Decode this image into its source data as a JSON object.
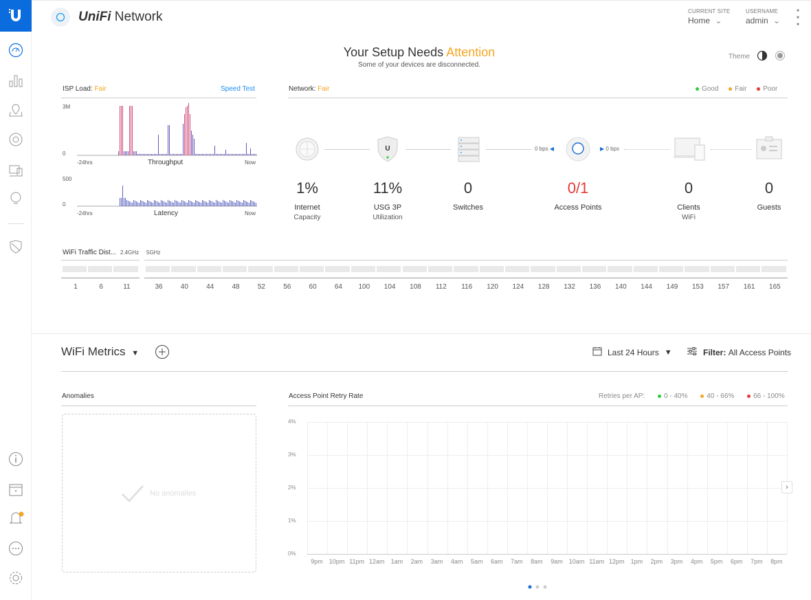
{
  "app": {
    "brand_prefix": "UniFi",
    "brand_suffix": "Network"
  },
  "header": {
    "site_label": "CURRENT SITE",
    "site_value": "Home",
    "user_label": "USERNAME",
    "user_value": "admin"
  },
  "status": {
    "title_prefix": "Your Setup Needs",
    "title_highlight": "Attention",
    "subtitle": "Some of your devices are disconnected.",
    "theme_label": "Theme"
  },
  "isp": {
    "label": "ISP Load:",
    "status": "Fair",
    "speed_test": "Speed Test",
    "throughput": {
      "ymax": "3M",
      "ymin": "0",
      "left": "-24hrs",
      "right": "Now",
      "name": "Throughput"
    },
    "latency": {
      "ymax": "500",
      "ymin": "0",
      "left": "-24hrs",
      "right": "Now",
      "name": "Latency"
    }
  },
  "network": {
    "label": "Network:",
    "status": "Fair",
    "legend": [
      {
        "label": "Good",
        "color": "#2ecc40"
      },
      {
        "label": "Fair",
        "color": "#f5a623"
      },
      {
        "label": "Poor",
        "color": "#e53935"
      }
    ],
    "rate_down": "0 bps",
    "rate_up": "0 bps",
    "stats": [
      {
        "value": "1%",
        "label": "Internet",
        "sub": "Capacity"
      },
      {
        "value": "11%",
        "label": "USG 3P",
        "sub": "Utilization"
      },
      {
        "value": "0",
        "label": "Switches",
        "sub": ""
      },
      {
        "value": "0/1",
        "label": "Access Points",
        "sub": ""
      },
      {
        "value": "0",
        "label": "Clients",
        "sub": "WiFi"
      },
      {
        "value": "0",
        "label": "Guests",
        "sub": ""
      }
    ]
  },
  "wifi_traffic": {
    "label": "WiFi Traffic Dist...",
    "band24": "2.4GHz",
    "band5": "5GHz",
    "channels24": [
      "1",
      "6",
      "11"
    ],
    "channels5": [
      "36",
      "40",
      "44",
      "48",
      "52",
      "56",
      "60",
      "64",
      "100",
      "104",
      "108",
      "112",
      "116",
      "120",
      "124",
      "128",
      "132",
      "136",
      "140",
      "144",
      "149",
      "153",
      "157",
      "161",
      "165"
    ]
  },
  "metrics": {
    "title": "WiFi Metrics",
    "range": "Last 24 Hours",
    "filter_label": "Filter:",
    "filter_value": "All Access Points",
    "anomalies": {
      "title": "Anomalies",
      "empty": "No anomalies"
    },
    "retry": {
      "title": "Access Point Retry Rate",
      "legend_label": "Retries per AP:",
      "legend": [
        {
          "label": "0 - 40%",
          "color": "#2ecc40"
        },
        {
          "label": "40 - 66%",
          "color": "#f5a623"
        },
        {
          "label": "66 - 100%",
          "color": "#e53935"
        }
      ]
    }
  },
  "chart_data": {
    "type": "line",
    "title": "Access Point Retry Rate",
    "ylim": [
      0,
      4
    ],
    "yticks": [
      "4%",
      "3%",
      "2%",
      "1%",
      "0%"
    ],
    "x": [
      "9pm",
      "10pm",
      "11pm",
      "12am",
      "1am",
      "2am",
      "3am",
      "4am",
      "5am",
      "6am",
      "7am",
      "8am",
      "9am",
      "10am",
      "11am",
      "12pm",
      "1pm",
      "2pm",
      "3pm",
      "4pm",
      "5pm",
      "6pm",
      "7pm",
      "8pm"
    ],
    "series": [],
    "grid": true
  }
}
